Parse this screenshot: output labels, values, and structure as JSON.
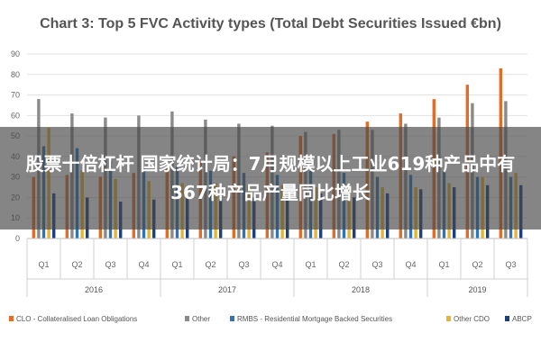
{
  "banner": {
    "headline": "股票十倍杠杆 国家统计局：7月规模以上工业619种产品中有367种产品产量同比增长"
  },
  "chart_data": {
    "type": "bar",
    "title": "Chart 3: Top 5 FVC Activity types (Total Debt Securities Issued €bn)",
    "xlabel": "",
    "ylabel": "",
    "ylim": [
      0,
      90
    ],
    "yticks": [
      0,
      10,
      20,
      30,
      40,
      50,
      60,
      70,
      80,
      90
    ],
    "grid": true,
    "legend_position": "bottom",
    "categories": [
      "Q1",
      "Q2",
      "Q3",
      "Q4",
      "Q1",
      "Q2",
      "Q3",
      "Q4",
      "Q1",
      "Q2",
      "Q3",
      "Q4",
      "Q1",
      "Q2",
      "Q3"
    ],
    "year_groups": [
      {
        "label": "2016",
        "start": 0,
        "count": 4
      },
      {
        "label": "2017",
        "start": 4,
        "count": 4
      },
      {
        "label": "2018",
        "start": 8,
        "count": 4
      },
      {
        "label": "2019",
        "start": 12,
        "count": 3
      }
    ],
    "series": [
      {
        "name": "CLO - Collateralised Loan Obligations",
        "color": "#e46c26",
        "values": [
          30,
          31,
          30,
          32,
          35,
          38,
          40,
          42,
          50,
          51,
          57,
          61,
          68,
          75,
          83
        ]
      },
      {
        "name": "Other",
        "color": "#8a8a8a",
        "values": [
          68,
          61,
          59,
          60,
          62,
          58,
          56,
          55,
          52,
          53,
          53,
          56,
          59,
          66,
          67
        ]
      },
      {
        "name": "RMBS - Residential Mortgage Backed Securities",
        "color": "#2e75b6",
        "values": [
          45,
          44,
          38,
          34,
          35,
          33,
          32,
          31,
          33,
          32,
          30,
          31,
          33,
          30,
          30
        ]
      },
      {
        "name": "Other CDO",
        "color": "#e8b430",
        "values": [
          54,
          33,
          29,
          28,
          27,
          27,
          26,
          26,
          25,
          25,
          25,
          25,
          27,
          30,
          32
        ]
      },
      {
        "name": "ABCP",
        "color": "#1f3f7a",
        "values": [
          22,
          20,
          18,
          19,
          20,
          19,
          20,
          21,
          22,
          20,
          22,
          24,
          25,
          26,
          26
        ]
      }
    ]
  }
}
